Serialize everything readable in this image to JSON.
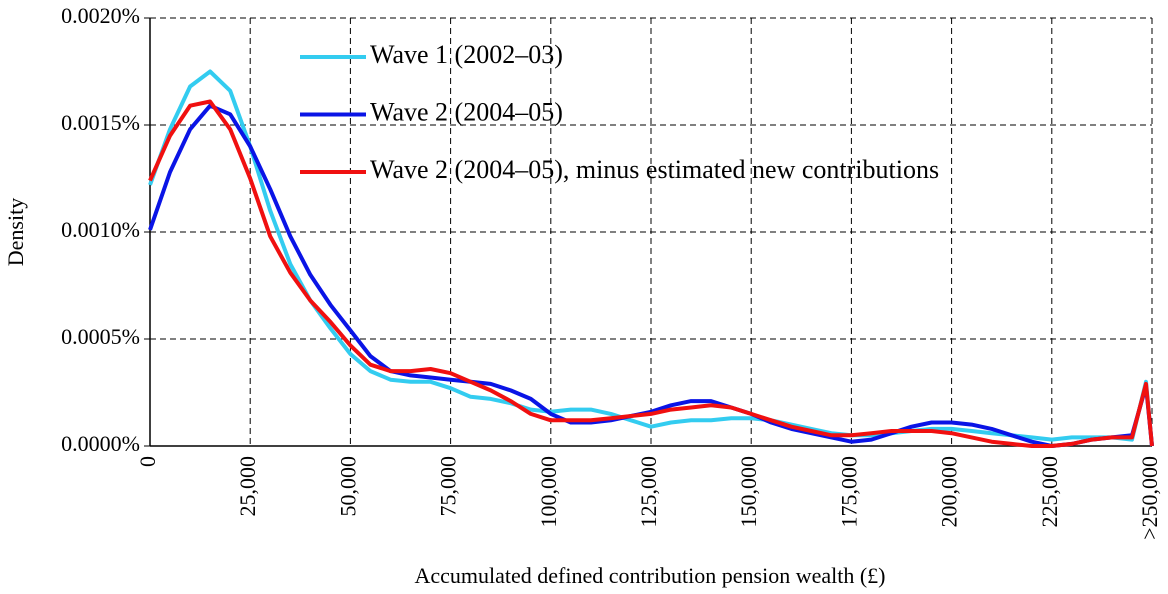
{
  "chart_data": {
    "type": "line",
    "ylabel": "Density",
    "xlabel": "Accumulated defined contribution pension wealth (£)",
    "x": [
      0,
      5000,
      10000,
      15000,
      20000,
      25000,
      30000,
      35000,
      40000,
      45000,
      50000,
      55000,
      60000,
      65000,
      70000,
      75000,
      80000,
      85000,
      90000,
      95000,
      100000,
      105000,
      110000,
      115000,
      120000,
      125000,
      130000,
      135000,
      140000,
      145000,
      150000,
      155000,
      160000,
      165000,
      170000,
      175000,
      180000,
      185000,
      190000,
      195000,
      200000,
      205000,
      210000,
      215000,
      220000,
      225000,
      230000,
      235000,
      240000,
      245000,
      248500,
      250000
    ],
    "series": [
      {
        "name": "Wave 1 (2002–03)",
        "color": "#33ccf0",
        "values": [
          0.00122,
          0.00148,
          0.00168,
          0.00175,
          0.00166,
          0.0014,
          0.0011,
          0.00085,
          0.00068,
          0.00055,
          0.00043,
          0.00035,
          0.00031,
          0.0003,
          0.0003,
          0.00027,
          0.00023,
          0.00022,
          0.0002,
          0.00017,
          0.00016,
          0.00017,
          0.00017,
          0.00015,
          0.00012,
          9e-05,
          0.00011,
          0.00012,
          0.00012,
          0.00013,
          0.00013,
          0.00012,
          0.0001,
          8e-05,
          6e-05,
          5e-05,
          5e-05,
          6e-05,
          7e-05,
          8e-05,
          8e-05,
          7e-05,
          6e-05,
          5e-05,
          4e-05,
          3e-05,
          4e-05,
          4e-05,
          4e-05,
          3e-05,
          0.0003,
          0
        ]
      },
      {
        "name": "Wave 2 (2004–05)",
        "color": "#0a14e6",
        "values": [
          0.00101,
          0.00128,
          0.00148,
          0.00159,
          0.00155,
          0.0014,
          0.0012,
          0.00098,
          0.0008,
          0.00066,
          0.00054,
          0.00042,
          0.00035,
          0.00033,
          0.00032,
          0.00031,
          0.0003,
          0.00029,
          0.00026,
          0.00022,
          0.00015,
          0.00011,
          0.00011,
          0.00012,
          0.00014,
          0.00016,
          0.00019,
          0.00021,
          0.00021,
          0.00018,
          0.00015,
          0.00011,
          8e-05,
          6e-05,
          4e-05,
          2e-05,
          3e-05,
          6e-05,
          9e-05,
          0.00011,
          0.00011,
          0.0001,
          8e-05,
          5e-05,
          2e-05,
          0,
          1e-05,
          3e-05,
          4e-05,
          5e-05,
          0.00028,
          0
        ]
      },
      {
        "name": "Wave 2 (2004–05), minus estimated new contributions",
        "color": "#f01010",
        "values": [
          0.00124,
          0.00145,
          0.00159,
          0.00161,
          0.00148,
          0.00125,
          0.00098,
          0.00081,
          0.00068,
          0.00058,
          0.00047,
          0.00038,
          0.00035,
          0.00035,
          0.00036,
          0.00034,
          0.0003,
          0.00026,
          0.00021,
          0.00015,
          0.00012,
          0.00012,
          0.00012,
          0.00013,
          0.00014,
          0.00015,
          0.00017,
          0.00018,
          0.00019,
          0.00018,
          0.00015,
          0.00012,
          9e-05,
          7e-05,
          5e-05,
          5e-05,
          6e-05,
          7e-05,
          7e-05,
          7e-05,
          6e-05,
          4e-05,
          2e-05,
          1e-05,
          0,
          0,
          1e-05,
          3e-05,
          4e-05,
          4e-05,
          0.00029,
          0
        ]
      }
    ],
    "xlim": [
      0,
      250000
    ],
    "ylim": [
      0,
      0.002
    ],
    "xticks": [
      0,
      {
        "value": 25000,
        "label": "25,000"
      },
      {
        "value": 50000,
        "label": "50,000"
      },
      {
        "value": 75000,
        "label": "75,000"
      },
      {
        "value": 100000,
        "label": "100,000"
      },
      {
        "value": 125000,
        "label": "125,000"
      },
      {
        "value": 150000,
        "label": "150,000"
      },
      {
        "value": 175000,
        "label": "175,000"
      },
      {
        "value": 200000,
        "label": "200,000"
      },
      {
        "value": 225000,
        "label": "225,000"
      },
      {
        "value": 250000,
        "label": ">250,000"
      }
    ],
    "yticks": [
      {
        "value": 0,
        "label": "0.0000%"
      },
      {
        "value": 0.0005,
        "label": "0.0005%"
      },
      {
        "value": 0.001,
        "label": "0.0010%"
      },
      {
        "value": 0.0015,
        "label": "0.0015%"
      },
      {
        "value": 0.002,
        "label": "0.0020%"
      }
    ],
    "grid": true,
    "legend": "top"
  }
}
